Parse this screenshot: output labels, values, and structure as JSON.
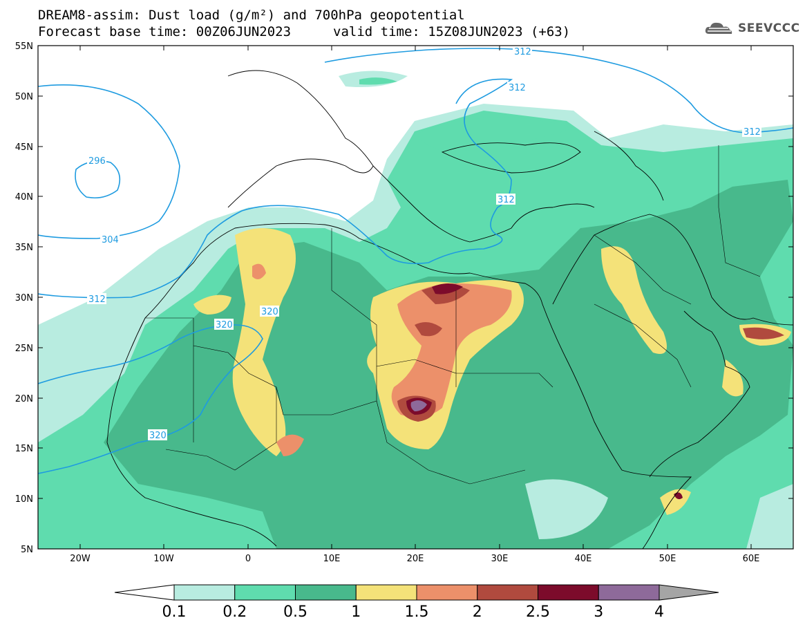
{
  "header": {
    "title_line1": "DREAM8-assim: Dust load (g/m²) and 700hPa geopotential",
    "base_time": "Forecast base time: 00Z06JUN2023",
    "valid_time": "valid time: 15Z08JUN2023 (+63)",
    "logo_text": "SEEVCCC"
  },
  "axes": {
    "lat_labels": [
      "55N",
      "50N",
      "45N",
      "40N",
      "35N",
      "30N",
      "25N",
      "20N",
      "15N",
      "10N",
      "5N"
    ],
    "lon_labels": [
      "20W",
      "10W",
      "0",
      "10E",
      "20E",
      "30E",
      "40E",
      "50E",
      "60E"
    ]
  },
  "contours": {
    "color": "#1e9be0",
    "labels": [
      "312",
      "312",
      "312",
      "312",
      "296",
      "304",
      "312",
      "320",
      "320",
      "320"
    ]
  },
  "colorbar": {
    "colors": [
      "#ffffff",
      "#b8ece0",
      "#5fdcae",
      "#48b98c",
      "#f4e279",
      "#ec906a",
      "#b04a3e",
      "#7c0b2b",
      "#8e6a9a",
      "#a5a5a5"
    ],
    "labels": [
      "0.1",
      "0.2",
      "0.5",
      "1",
      "1.5",
      "2",
      "2.5",
      "3",
      "4"
    ]
  }
}
